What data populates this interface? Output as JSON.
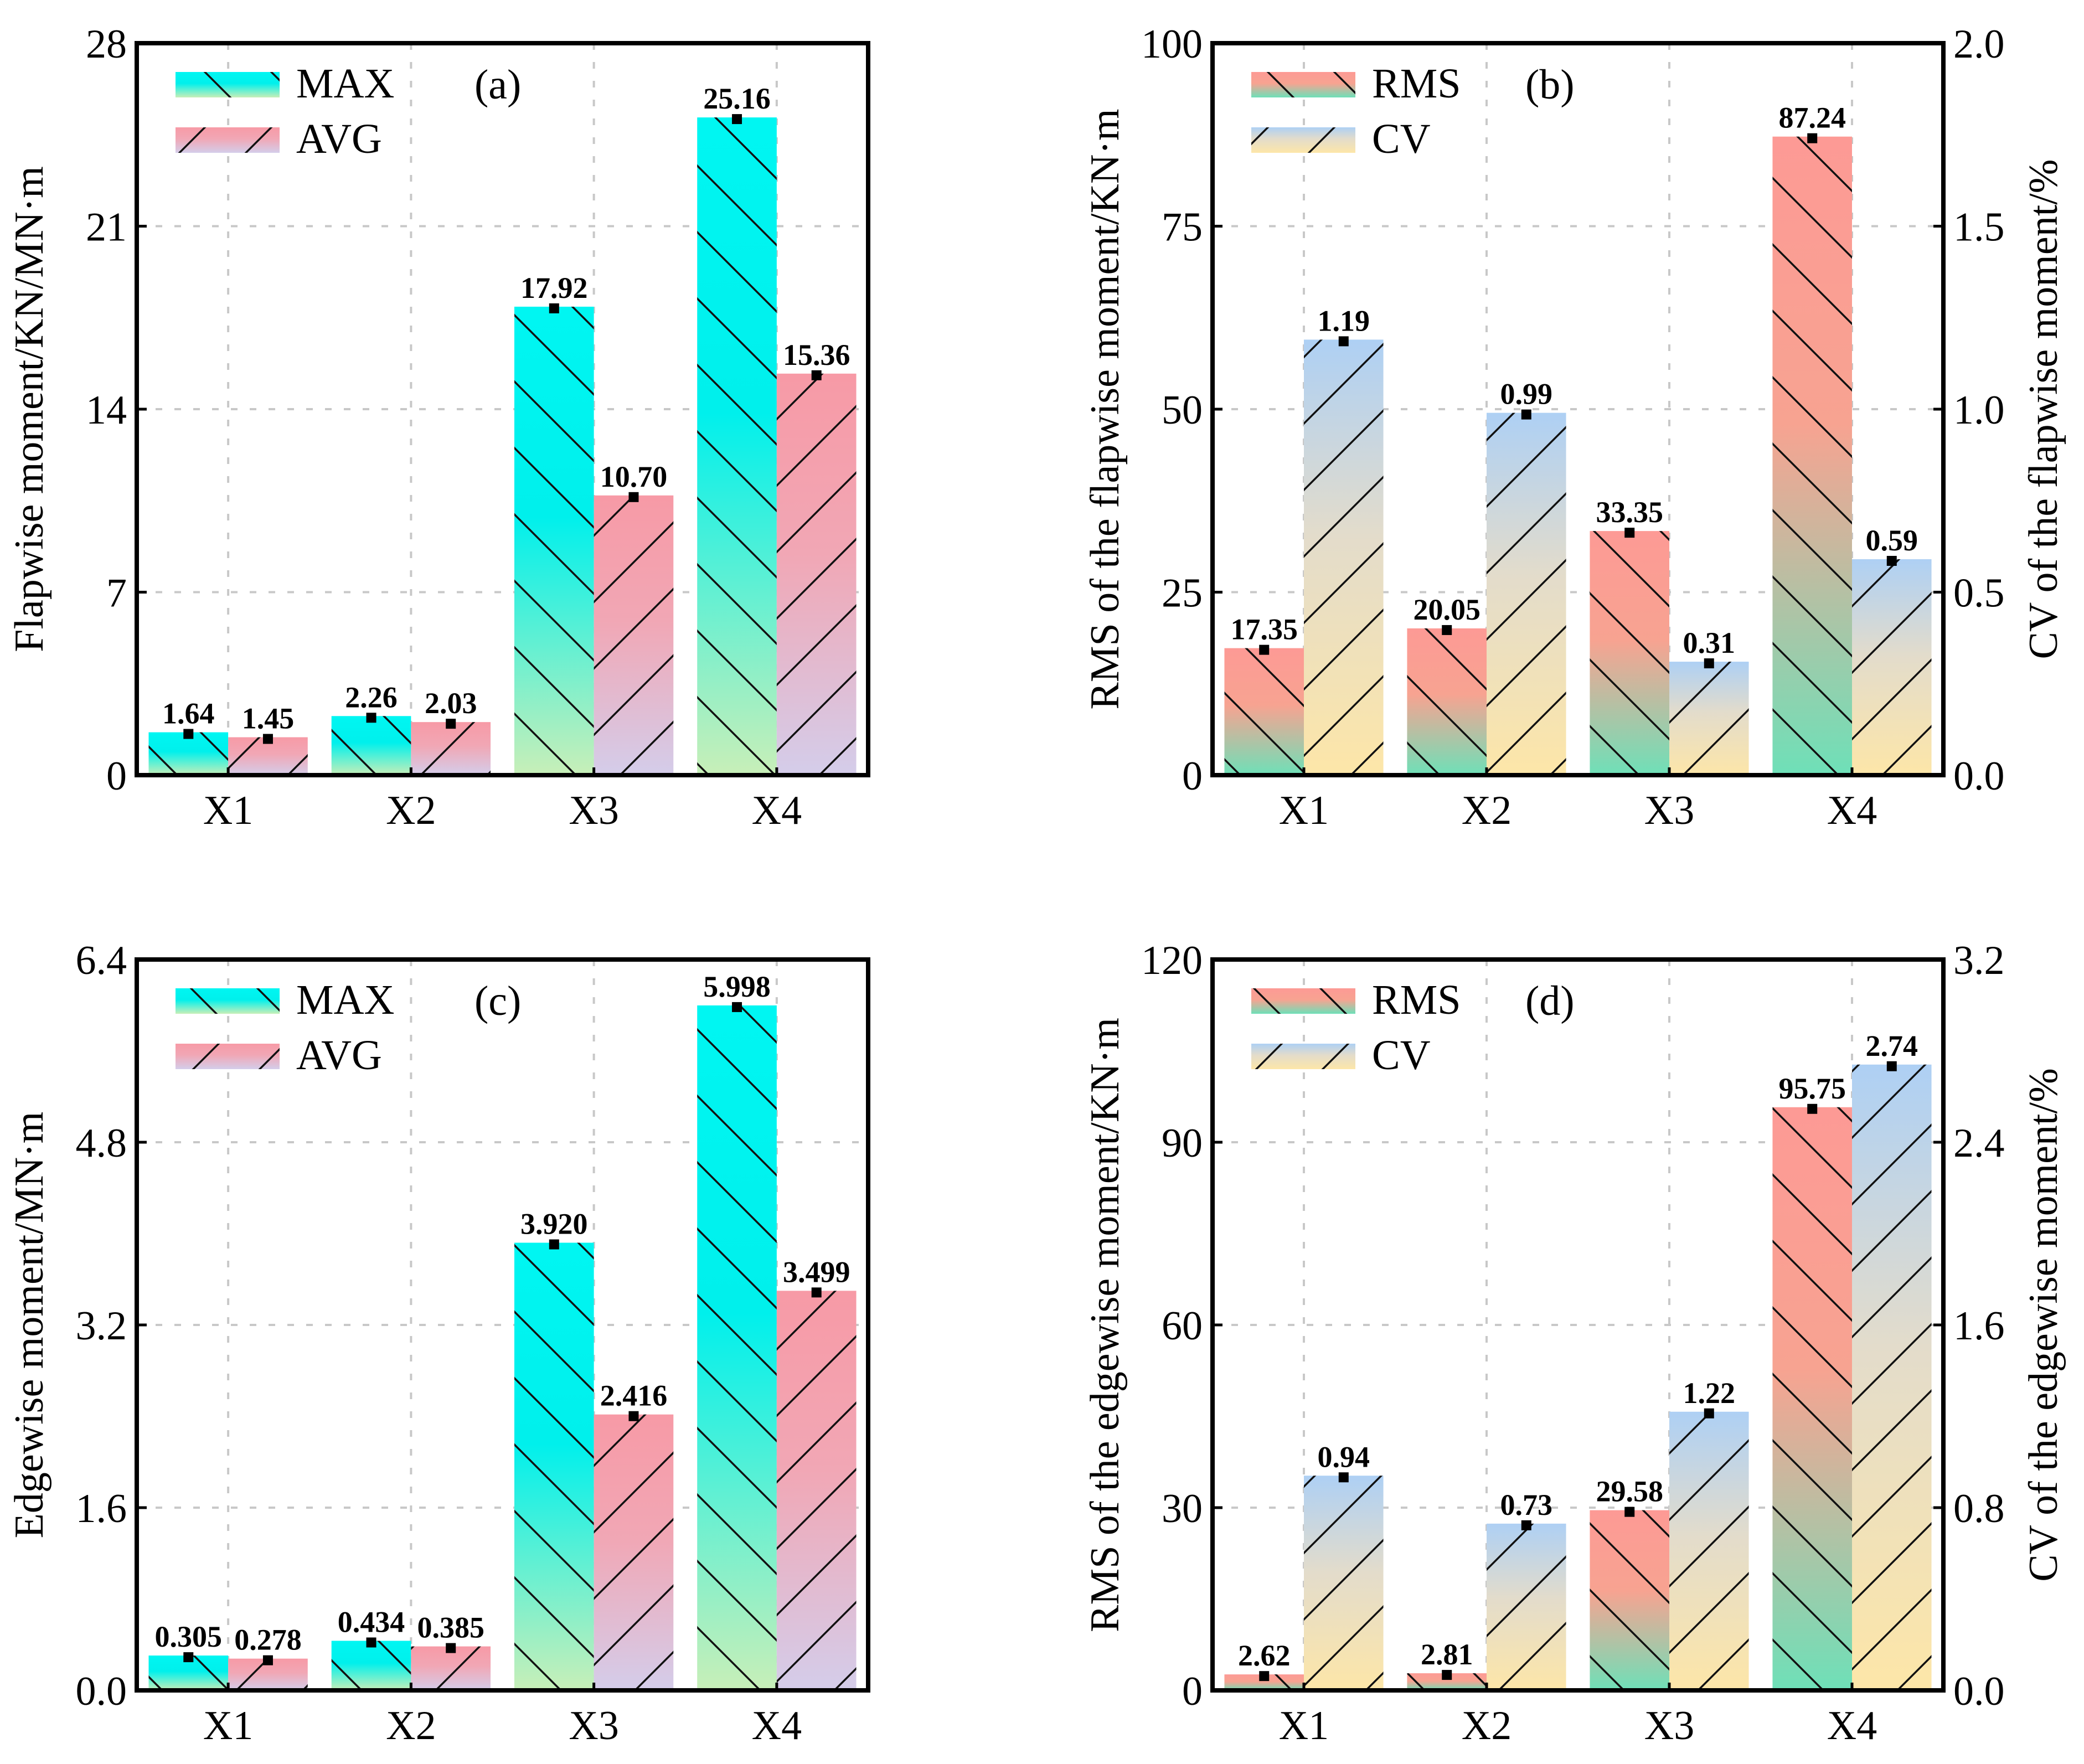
{
  "chart_data": [
    {
      "id": "a",
      "type": "bar",
      "panel_tag": "(a)",
      "categories": [
        "X1",
        "X2",
        "X3",
        "X4"
      ],
      "ylabel": "Flapwise moment/KN/MN·m",
      "ylim": [
        0,
        28
      ],
      "yticks": [
        "0",
        "7",
        "14",
        "21",
        "28"
      ],
      "y2label": null,
      "grid": true,
      "legend_position": "top-left",
      "series": [
        {
          "name": "MAX",
          "axis": "left",
          "hatch": "backslash",
          "gradient": [
            "#00f6f2",
            "#00f0ec",
            "#c8efb8"
          ],
          "values": [
            1.64,
            2.26,
            17.92,
            25.16
          ],
          "labels": [
            "1.64",
            "2.26",
            "17.92",
            "25.16"
          ]
        },
        {
          "name": "AVG",
          "axis": "left",
          "hatch": "slash",
          "gradient": [
            "#f79aa6",
            "#f1a7b5",
            "#d4cdea"
          ],
          "values": [
            1.45,
            2.03,
            10.7,
            15.36
          ],
          "labels": [
            "1.45",
            "2.03",
            "10.70",
            "15.36"
          ]
        }
      ]
    },
    {
      "id": "b",
      "type": "bar",
      "panel_tag": "(b)",
      "categories": [
        "X1",
        "X2",
        "X3",
        "X4"
      ],
      "ylabel": "RMS of the flapwise moment/KN·m",
      "ylim": [
        0,
        100
      ],
      "yticks": [
        "0",
        "25",
        "50",
        "75",
        "100"
      ],
      "y2label": "CV of the flapwise moment/%",
      "y2lim": [
        0,
        2.0
      ],
      "y2ticks": [
        "0.0",
        "0.5",
        "1.0",
        "1.5",
        "2.0"
      ],
      "grid": true,
      "legend_position": "top-left",
      "series": [
        {
          "name": "RMS",
          "axis": "left",
          "hatch": "backslash",
          "gradient": [
            "#fd9a95",
            "#f7a391",
            "#6ee0b8"
          ],
          "values": [
            17.35,
            20.05,
            33.35,
            87.24
          ],
          "labels": [
            "17.35",
            "20.05",
            "33.35",
            "87.24"
          ]
        },
        {
          "name": "CV",
          "axis": "right",
          "hatch": "slash",
          "gradient": [
            "#aed0f4",
            "#e3dccb",
            "#fde6a8"
          ],
          "values": [
            1.19,
            0.99,
            0.31,
            0.59
          ],
          "labels": [
            "1.19",
            "0.99",
            "0.31",
            "0.59"
          ]
        }
      ]
    },
    {
      "id": "c",
      "type": "bar",
      "panel_tag": "(c)",
      "categories": [
        "X1",
        "X2",
        "X3",
        "X4"
      ],
      "ylabel": "Edgewise moment/MN·m",
      "ylim": [
        0,
        6.4
      ],
      "yticks": [
        "0.0",
        "1.6",
        "3.2",
        "4.8",
        "6.4"
      ],
      "y2label": null,
      "grid": true,
      "legend_position": "top-left",
      "series": [
        {
          "name": "MAX",
          "axis": "left",
          "hatch": "backslash",
          "gradient": [
            "#00f6f2",
            "#00f0ec",
            "#c8efb8"
          ],
          "values": [
            0.305,
            0.434,
            3.92,
            5.998
          ],
          "labels": [
            "0.305",
            "0.434",
            "3.920",
            "5.998"
          ]
        },
        {
          "name": "AVG",
          "axis": "left",
          "hatch": "slash",
          "gradient": [
            "#f79aa6",
            "#f1a7b5",
            "#d4cdea"
          ],
          "values": [
            0.278,
            0.385,
            2.416,
            3.499
          ],
          "labels": [
            "0.278",
            "0.385",
            "2.416",
            "3.499"
          ]
        }
      ]
    },
    {
      "id": "d",
      "type": "bar",
      "panel_tag": "(d)",
      "categories": [
        "X1",
        "X2",
        "X3",
        "X4"
      ],
      "ylabel": "RMS of the edgewise moment/KN·m",
      "ylim": [
        0,
        120
      ],
      "yticks": [
        "0",
        "30",
        "60",
        "90",
        "120"
      ],
      "y2label": "CV of the edgewise moment/%",
      "y2lim": [
        0,
        3.2
      ],
      "y2ticks": [
        "0.0",
        "0.8",
        "1.6",
        "2.4",
        "3.2"
      ],
      "grid": true,
      "legend_position": "top-left",
      "series": [
        {
          "name": "RMS",
          "axis": "left",
          "hatch": "backslash",
          "gradient": [
            "#fd9a95",
            "#f7a391",
            "#6ee0b8"
          ],
          "values": [
            2.62,
            2.81,
            29.58,
            95.75
          ],
          "labels": [
            "2.62",
            "2.81",
            "29.58",
            "95.75"
          ]
        },
        {
          "name": "CV",
          "axis": "right",
          "hatch": "slash",
          "gradient": [
            "#aed0f4",
            "#e3dccb",
            "#fde6a8"
          ],
          "values": [
            0.94,
            0.73,
            1.22,
            2.74
          ],
          "labels": [
            "0.94",
            "0.73",
            "1.22",
            "2.74"
          ]
        }
      ]
    }
  ]
}
